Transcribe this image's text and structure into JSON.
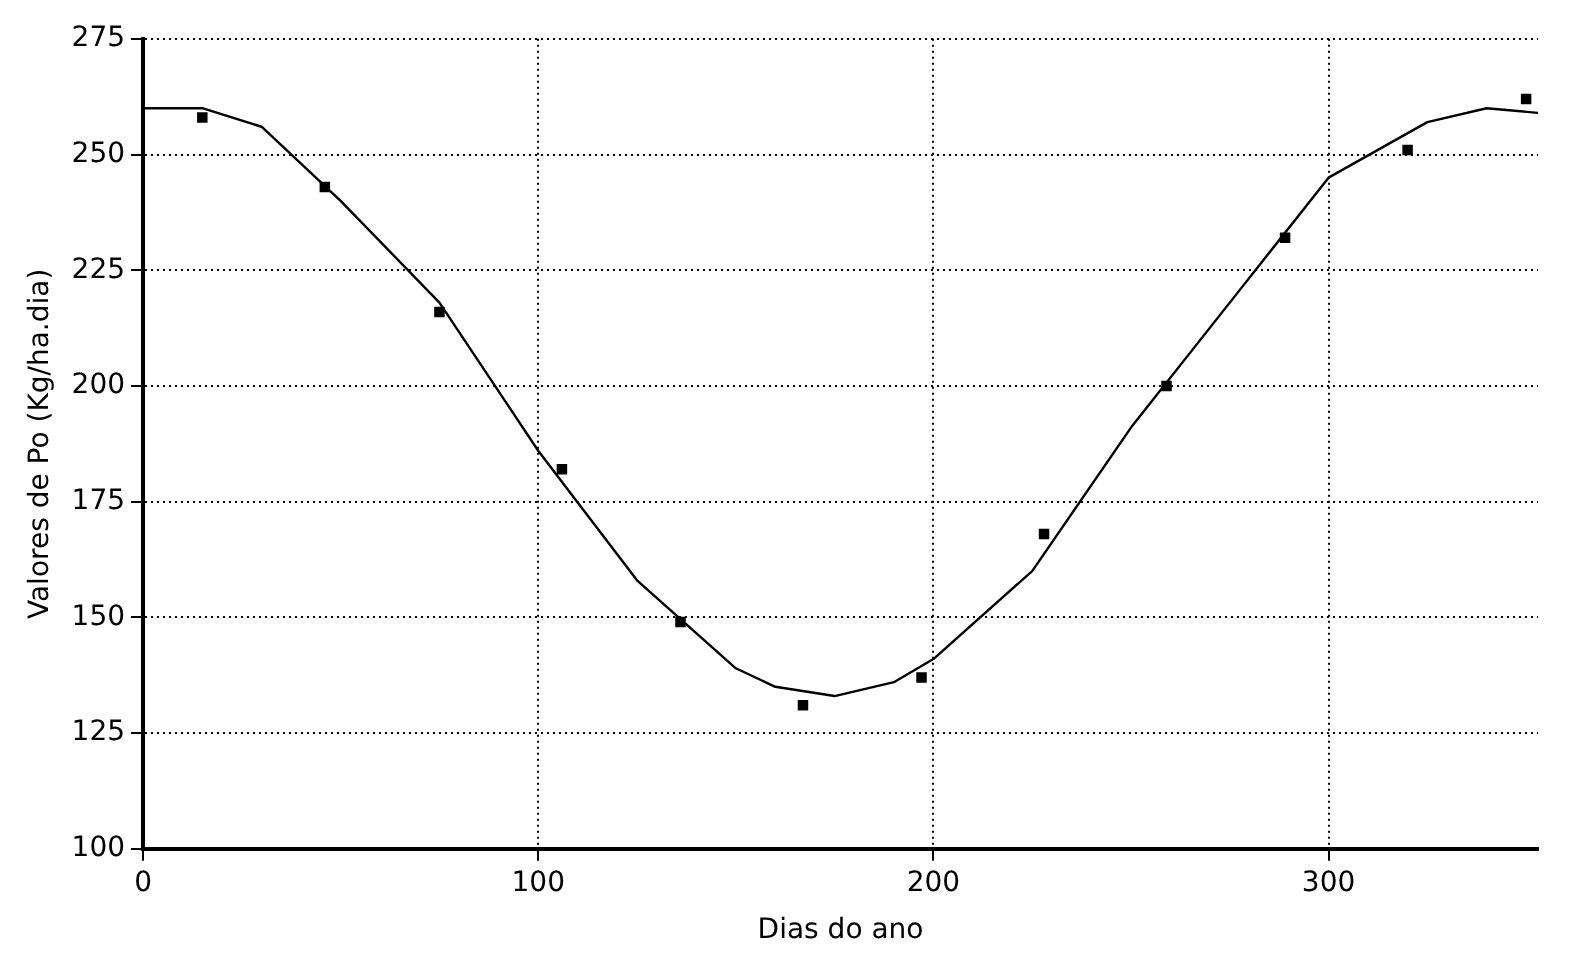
{
  "chart_data": {
    "type": "scatter",
    "xlabel": "Dias do ano",
    "ylabel": "Valores de Po (Kg/ha.dia)",
    "xlim": [
      0,
      353
    ],
    "xticks": [
      0,
      100,
      200,
      300
    ],
    "ylim": [
      100,
      275
    ],
    "yticks": [
      100,
      125,
      150,
      175,
      200,
      225,
      250,
      275
    ],
    "grid": true,
    "legend": false,
    "series": [
      {
        "type": "scatter",
        "color": "#000000",
        "marker": "square",
        "x": [
          15,
          46,
          75,
          106,
          136,
          167,
          197,
          228,
          259,
          289,
          320,
          350
        ],
        "values": [
          258,
          243,
          216,
          182,
          149,
          131,
          137,
          168,
          200,
          232,
          251,
          262
        ]
      },
      {
        "type": "line",
        "color": "#000000",
        "marker": "none",
        "line_style": "solid",
        "x": [
          0,
          15,
          30,
          50,
          75,
          100,
          125,
          150,
          160,
          175,
          190,
          200,
          225,
          250,
          275,
          300,
          325,
          340,
          353
        ],
        "values": [
          260,
          260,
          256,
          240,
          218,
          186,
          158,
          139,
          135,
          133,
          136,
          141,
          160,
          191,
          218,
          245,
          257,
          260,
          259
        ]
      }
    ]
  }
}
